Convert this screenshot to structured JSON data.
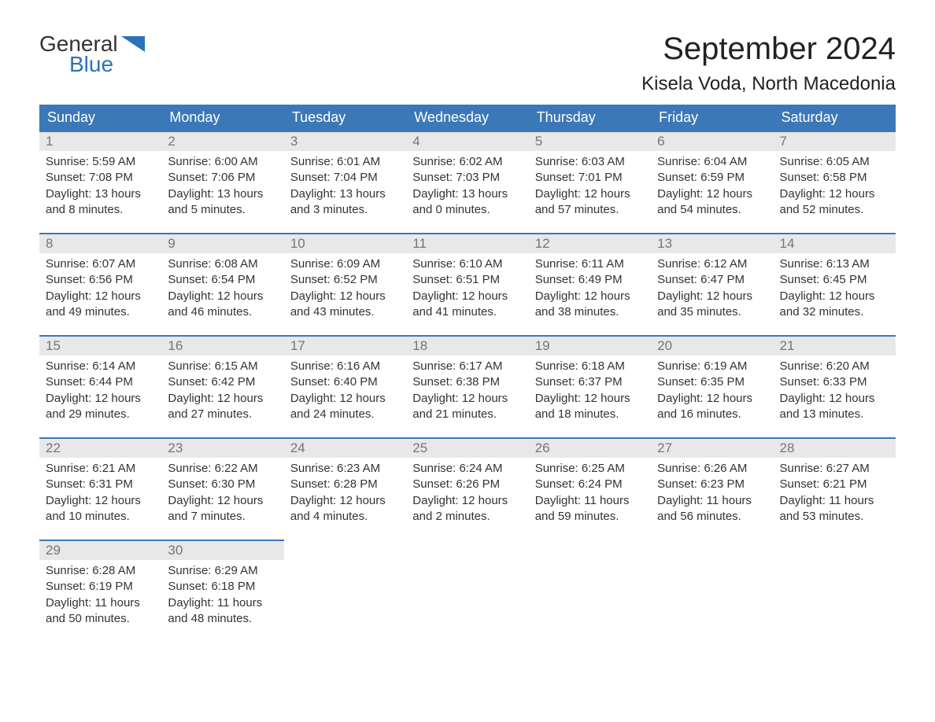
{
  "logo": {
    "text1": "General",
    "text2": "Blue",
    "flag_color": "#2a73b8"
  },
  "title": "September 2024",
  "location": "Kisela Voda, North Macedonia",
  "colors": {
    "header_bg": "#3b78b8",
    "header_text": "#ffffff",
    "daynum_bg": "#e8e8e8",
    "daynum_text": "#757575",
    "border": "#3b78b8",
    "body_text": "#333333",
    "logo_blue": "#2a73b8"
  },
  "weekdays": [
    "Sunday",
    "Monday",
    "Tuesday",
    "Wednesday",
    "Thursday",
    "Friday",
    "Saturday"
  ],
  "days": [
    {
      "n": "1",
      "sunrise": "5:59 AM",
      "sunset": "7:08 PM",
      "dl1": "13 hours",
      "dl2": "and 8 minutes."
    },
    {
      "n": "2",
      "sunrise": "6:00 AM",
      "sunset": "7:06 PM",
      "dl1": "13 hours",
      "dl2": "and 5 minutes."
    },
    {
      "n": "3",
      "sunrise": "6:01 AM",
      "sunset": "7:04 PM",
      "dl1": "13 hours",
      "dl2": "and 3 minutes."
    },
    {
      "n": "4",
      "sunrise": "6:02 AM",
      "sunset": "7:03 PM",
      "dl1": "13 hours",
      "dl2": "and 0 minutes."
    },
    {
      "n": "5",
      "sunrise": "6:03 AM",
      "sunset": "7:01 PM",
      "dl1": "12 hours",
      "dl2": "and 57 minutes."
    },
    {
      "n": "6",
      "sunrise": "6:04 AM",
      "sunset": "6:59 PM",
      "dl1": "12 hours",
      "dl2": "and 54 minutes."
    },
    {
      "n": "7",
      "sunrise": "6:05 AM",
      "sunset": "6:58 PM",
      "dl1": "12 hours",
      "dl2": "and 52 minutes."
    },
    {
      "n": "8",
      "sunrise": "6:07 AM",
      "sunset": "6:56 PM",
      "dl1": "12 hours",
      "dl2": "and 49 minutes."
    },
    {
      "n": "9",
      "sunrise": "6:08 AM",
      "sunset": "6:54 PM",
      "dl1": "12 hours",
      "dl2": "and 46 minutes."
    },
    {
      "n": "10",
      "sunrise": "6:09 AM",
      "sunset": "6:52 PM",
      "dl1": "12 hours",
      "dl2": "and 43 minutes."
    },
    {
      "n": "11",
      "sunrise": "6:10 AM",
      "sunset": "6:51 PM",
      "dl1": "12 hours",
      "dl2": "and 41 minutes."
    },
    {
      "n": "12",
      "sunrise": "6:11 AM",
      "sunset": "6:49 PM",
      "dl1": "12 hours",
      "dl2": "and 38 minutes."
    },
    {
      "n": "13",
      "sunrise": "6:12 AM",
      "sunset": "6:47 PM",
      "dl1": "12 hours",
      "dl2": "and 35 minutes."
    },
    {
      "n": "14",
      "sunrise": "6:13 AM",
      "sunset": "6:45 PM",
      "dl1": "12 hours",
      "dl2": "and 32 minutes."
    },
    {
      "n": "15",
      "sunrise": "6:14 AM",
      "sunset": "6:44 PM",
      "dl1": "12 hours",
      "dl2": "and 29 minutes."
    },
    {
      "n": "16",
      "sunrise": "6:15 AM",
      "sunset": "6:42 PM",
      "dl1": "12 hours",
      "dl2": "and 27 minutes."
    },
    {
      "n": "17",
      "sunrise": "6:16 AM",
      "sunset": "6:40 PM",
      "dl1": "12 hours",
      "dl2": "and 24 minutes."
    },
    {
      "n": "18",
      "sunrise": "6:17 AM",
      "sunset": "6:38 PM",
      "dl1": "12 hours",
      "dl2": "and 21 minutes."
    },
    {
      "n": "19",
      "sunrise": "6:18 AM",
      "sunset": "6:37 PM",
      "dl1": "12 hours",
      "dl2": "and 18 minutes."
    },
    {
      "n": "20",
      "sunrise": "6:19 AM",
      "sunset": "6:35 PM",
      "dl1": "12 hours",
      "dl2": "and 16 minutes."
    },
    {
      "n": "21",
      "sunrise": "6:20 AM",
      "sunset": "6:33 PM",
      "dl1": "12 hours",
      "dl2": "and 13 minutes."
    },
    {
      "n": "22",
      "sunrise": "6:21 AM",
      "sunset": "6:31 PM",
      "dl1": "12 hours",
      "dl2": "and 10 minutes."
    },
    {
      "n": "23",
      "sunrise": "6:22 AM",
      "sunset": "6:30 PM",
      "dl1": "12 hours",
      "dl2": "and 7 minutes."
    },
    {
      "n": "24",
      "sunrise": "6:23 AM",
      "sunset": "6:28 PM",
      "dl1": "12 hours",
      "dl2": "and 4 minutes."
    },
    {
      "n": "25",
      "sunrise": "6:24 AM",
      "sunset": "6:26 PM",
      "dl1": "12 hours",
      "dl2": "and 2 minutes."
    },
    {
      "n": "26",
      "sunrise": "6:25 AM",
      "sunset": "6:24 PM",
      "dl1": "11 hours",
      "dl2": "and 59 minutes."
    },
    {
      "n": "27",
      "sunrise": "6:26 AM",
      "sunset": "6:23 PM",
      "dl1": "11 hours",
      "dl2": "and 56 minutes."
    },
    {
      "n": "28",
      "sunrise": "6:27 AM",
      "sunset": "6:21 PM",
      "dl1": "11 hours",
      "dl2": "and 53 minutes."
    },
    {
      "n": "29",
      "sunrise": "6:28 AM",
      "sunset": "6:19 PM",
      "dl1": "11 hours",
      "dl2": "and 50 minutes."
    },
    {
      "n": "30",
      "sunrise": "6:29 AM",
      "sunset": "6:18 PM",
      "dl1": "11 hours",
      "dl2": "and 48 minutes."
    }
  ],
  "labels": {
    "sunrise": "Sunrise:",
    "sunset": "Sunset:",
    "daylight": "Daylight:"
  }
}
